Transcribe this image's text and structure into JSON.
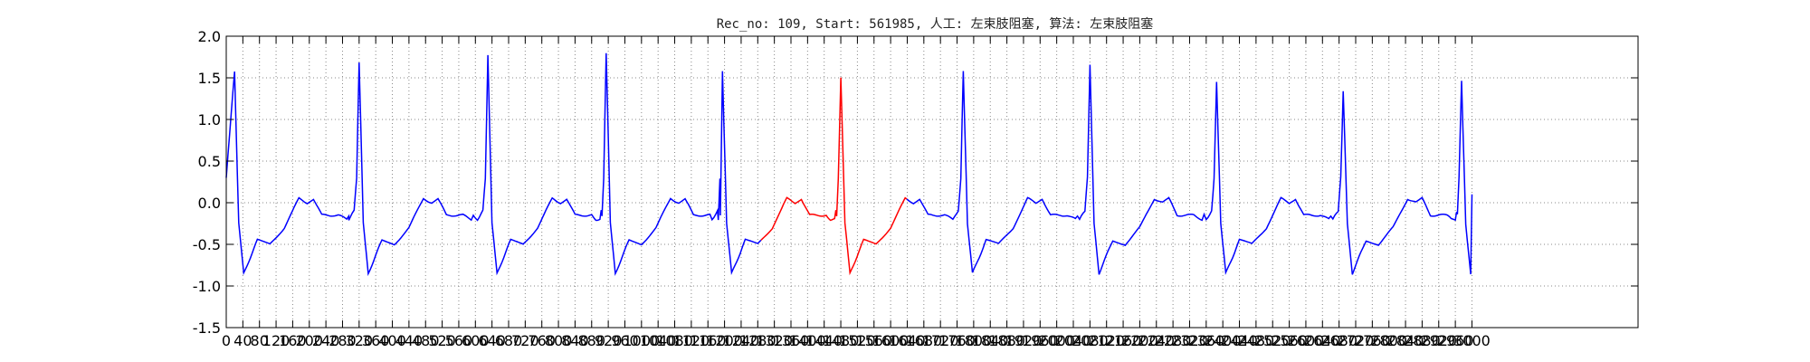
{
  "chart_data": {
    "type": "line",
    "title": "Rec_no: 109, Start: 561985, 人工: 左束肢阻塞, 算法: 左束肢阻塞",
    "xlabel": "",
    "ylabel": "",
    "xlim": [
      0,
      3400
    ],
    "ylim": [
      -1.5,
      2.0
    ],
    "grid": true,
    "grid_style": "dotted",
    "x_ticks": [
      0,
      40,
      80,
      120,
      160,
      200,
      240,
      280,
      320,
      360,
      400,
      440,
      480,
      520,
      560,
      600,
      640,
      680,
      720,
      760,
      800,
      840,
      880,
      920,
      960,
      1000,
      1040,
      1080,
      1120,
      1160,
      1200,
      1240,
      1280,
      1320,
      1360,
      1400,
      1440,
      1480,
      1520,
      1560,
      1600,
      1640,
      1680,
      1720,
      1760,
      1800,
      1840,
      1880,
      1920,
      1960,
      2000,
      2040,
      2080,
      2120,
      2160,
      2200,
      2240,
      2280,
      2320,
      2360,
      2400,
      2440,
      2480,
      2520,
      2560,
      2600,
      2640,
      2680,
      2720,
      2760,
      2800,
      2840,
      2880,
      2920,
      2960,
      3000
    ],
    "y_ticks": [
      "-1.5",
      "-1.0",
      "-0.5",
      "0.0",
      "0.5",
      "1.0",
      "1.5",
      "2.0"
    ],
    "colors": {
      "normal": "#0000ff",
      "highlight": "#ff0000",
      "grid": "#888888",
      "axes": "#000000"
    },
    "beats_r_peak_x": [
      20,
      320,
      630,
      915,
      1195,
      1480,
      1775,
      2080,
      2385,
      2690,
      2975
    ],
    "r_peak_values": [
      1.57,
      1.69,
      1.77,
      1.8,
      1.57,
      1.5,
      1.57,
      1.67,
      1.44,
      1.35,
      1.47
    ],
    "highlight_range": [
      1290,
      1640
    ],
    "waveform_landmarks_per_beat": {
      "relative_x": [
        -25,
        -12,
        -6,
        0,
        10,
        22,
        55,
        85,
        120,
        155,
        175,
        190,
        210,
        250,
        270,
        275
      ],
      "relative_y": [
        -0.2,
        -0.1,
        0.3,
        1.0,
        -0.25,
        -0.85,
        -0.45,
        -0.5,
        -0.3,
        0.05,
        0.0,
        0.05,
        -0.15,
        -0.15,
        -0.2,
        -0.15
      ]
    },
    "series": [
      {
        "x_end": 3000
      }
    ]
  }
}
